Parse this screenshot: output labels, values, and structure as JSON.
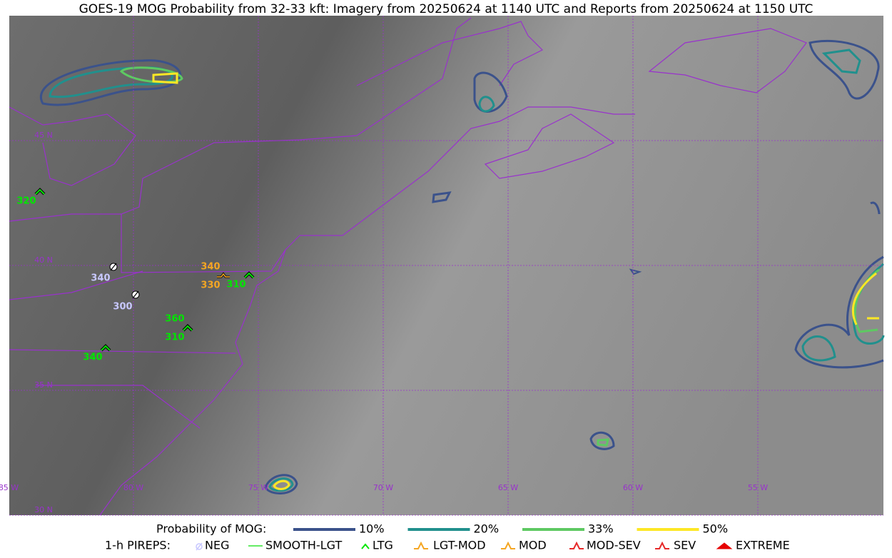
{
  "title": "GOES-19 MOG Probability from 32-33 kft: Imagery from 20250624 at 1140 UTC and Reports from 20250624 at 1150 UTC",
  "grid_labels": {
    "lat": [
      "45 N",
      "40 N",
      "35 N",
      "30 N"
    ],
    "lon": [
      "85 W",
      "80 W",
      "75 W",
      "70 W",
      "65 W",
      "60 W",
      "55 W"
    ]
  },
  "pireps": [
    {
      "label": "320",
      "kind": "LTG"
    },
    {
      "label": "340",
      "kind": "NEG"
    },
    {
      "label": "300",
      "kind": "NEG"
    },
    {
      "label": "340",
      "kind": "LGT-MOD"
    },
    {
      "label": "330",
      "kind": "LGT-MOD"
    },
    {
      "label": "310",
      "kind": "LTG"
    },
    {
      "label": "360",
      "kind": "LTG"
    },
    {
      "label": "310",
      "kind": "LTG"
    },
    {
      "label": "340",
      "kind": "LTG"
    }
  ],
  "legend": {
    "probability_title": "Probability of MOG:",
    "probability_levels": [
      {
        "label": "10%",
        "color": "#3b528b"
      },
      {
        "label": "20%",
        "color": "#21908d"
      },
      {
        "label": "33%",
        "color": "#5ec962"
      },
      {
        "label": "50%",
        "color": "#fde725"
      }
    ],
    "pirep_title": "1-h PIREPS:",
    "pirep_types": [
      {
        "label": "NEG",
        "color": "#c8c8ff"
      },
      {
        "label": "SMOOTH-LGT",
        "color": "#32e632"
      },
      {
        "label": "LTG",
        "color": "#00e600"
      },
      {
        "label": "LGT-MOD",
        "color": "#f5a623"
      },
      {
        "label": "MOD",
        "color": "#f5a623"
      },
      {
        "label": "MOD-SEV",
        "color": "#e62828"
      },
      {
        "label": "SEV",
        "color": "#e62828"
      },
      {
        "label": "EXTREME",
        "color": "#e60000"
      }
    ]
  }
}
